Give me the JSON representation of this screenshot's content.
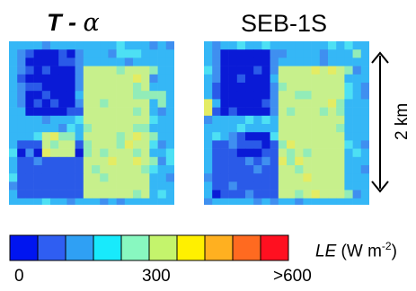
{
  "titles": {
    "left_prefix": "T - ",
    "left_symbol": "α",
    "right": "SEB-1S"
  },
  "scale": {
    "label": "2 km"
  },
  "colorbar": {
    "unit_symbol": "LE",
    "unit_rest": " (W m",
    "unit_exp": "-2",
    "unit_close": ")",
    "colors": [
      "#0015f0",
      "#2f5ef2",
      "#2fa0f4",
      "#18eafc",
      "#88f8c0",
      "#c4f46c",
      "#fff000",
      "#ffb020",
      "#ff6a20",
      "#ff1020"
    ],
    "ticks": [
      "0",
      "300",
      ">600"
    ]
  },
  "maps": {
    "palette": {
      "a": "#0a1ad6",
      "b": "#2a5ae8",
      "c": "#3f8ff0",
      "d": "#35b7f6",
      "e": "#4de0f4",
      "f": "#92ecb8",
      "g": "#c7f08c",
      "h": "#e4ec64"
    }
  }
}
